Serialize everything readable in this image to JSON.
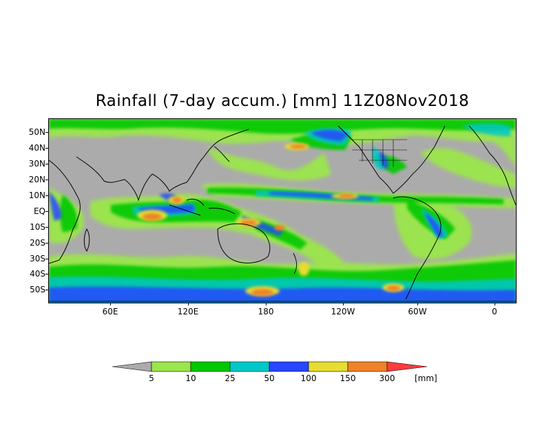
{
  "title": "Rainfall (7-day accum.) [mm] 11Z08Nov2018",
  "map": {
    "background_color": "#ababab",
    "coastline_color": "#000000",
    "lat_labels": [
      "50N",
      "40N",
      "30N",
      "20N",
      "10N",
      "EQ",
      "10S",
      "20S",
      "30S",
      "40S",
      "50S"
    ],
    "lon_labels": [
      "60E",
      "120E",
      "180",
      "120W",
      "60W",
      "0"
    ]
  },
  "legend": {
    "below_color": "#ababab",
    "above_color": "#ff3c3c",
    "colors": [
      "#9be64b",
      "#00c800",
      "#00c8c8",
      "#2846ff",
      "#e6dc32",
      "#f08228"
    ],
    "breaks": [
      "5",
      "10",
      "25",
      "50",
      "100",
      "150",
      "300"
    ],
    "unit": "[mm]"
  }
}
